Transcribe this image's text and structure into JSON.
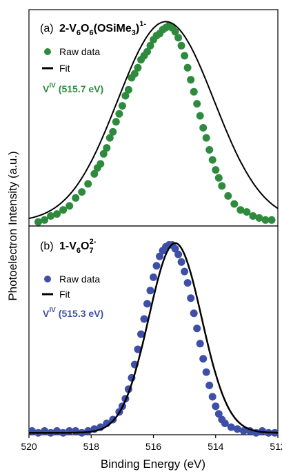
{
  "figure": {
    "ylabel": "Photoelectron Intensity (a.u.)",
    "xlabel": "Binding Energy (eV)"
  },
  "chart_data": [
    {
      "type": "scatter",
      "panel_tag": "(a)",
      "title_main": "2-V",
      "title_parts": [
        "6",
        "O",
        "6",
        "(OSiMe",
        "3",
        ")",
        "1-"
      ],
      "legend": {
        "points": "Raw data",
        "line": "Fit"
      },
      "annotation_prefix": "V",
      "annotation_sup": "IV",
      "annotation_value": "(515.7 eV)",
      "accent": "#2e8b3e",
      "xlim": [
        520,
        512
      ],
      "ylim": [
        0,
        1.08
      ],
      "fit": {
        "center": 515.6,
        "sigma": 1.55,
        "amplitude": 1.0,
        "baseline": 0.02
      },
      "series": [
        {
          "name": "Raw data",
          "x": [
            519.7,
            519.5,
            519.3,
            519.1,
            518.9,
            518.7,
            518.5,
            518.3,
            518.1,
            517.9,
            517.8,
            517.7,
            517.6,
            517.5,
            517.4,
            517.3,
            517.2,
            517.1,
            517.0,
            516.9,
            516.8,
            516.7,
            516.6,
            516.5,
            516.4,
            516.3,
            516.2,
            516.1,
            516.0,
            515.9,
            515.8,
            515.7,
            515.6,
            515.5,
            515.4,
            515.3,
            515.2,
            515.1,
            515.0,
            514.9,
            514.8,
            514.7,
            514.6,
            514.5,
            514.4,
            514.3,
            514.2,
            514.1,
            514.0,
            513.9,
            513.8,
            513.6,
            513.4,
            513.2,
            513.0,
            512.8,
            512.6,
            512.4,
            512.2
          ],
          "y": [
            0.02,
            0.03,
            0.05,
            0.06,
            0.08,
            0.1,
            0.14,
            0.17,
            0.21,
            0.26,
            0.29,
            0.31,
            0.36,
            0.39,
            0.44,
            0.47,
            0.52,
            0.56,
            0.6,
            0.65,
            0.68,
            0.74,
            0.76,
            0.79,
            0.83,
            0.85,
            0.87,
            0.9,
            0.93,
            0.95,
            0.96,
            0.98,
            0.99,
            1.0,
            0.99,
            0.97,
            0.94,
            0.9,
            0.85,
            0.79,
            0.73,
            0.67,
            0.61,
            0.55,
            0.49,
            0.44,
            0.38,
            0.33,
            0.28,
            0.24,
            0.2,
            0.15,
            0.11,
            0.08,
            0.07,
            0.05,
            0.04,
            0.03,
            0.03
          ]
        }
      ]
    },
    {
      "type": "scatter",
      "panel_tag": "(b)",
      "title_main": "1-V",
      "title_parts": [
        "6",
        "O",
        "7",
        "2-"
      ],
      "legend": {
        "points": "Raw data",
        "line": "Fit"
      },
      "annotation_prefix": "V",
      "annotation_sup": "IV",
      "annotation_value": "(515.3 eV)",
      "accent": "#3e4fa8",
      "xlim": [
        520,
        512
      ],
      "ylim": [
        0,
        1.1
      ],
      "fit": {
        "center": 515.3,
        "sigma": 0.85,
        "amplitude": 1.0,
        "baseline": 0.01
      },
      "series": [
        {
          "name": "Raw data",
          "x": [
            519.9,
            519.7,
            519.5,
            519.3,
            519.1,
            518.9,
            518.7,
            518.5,
            518.3,
            518.1,
            517.9,
            517.7,
            517.5,
            517.3,
            517.1,
            517.0,
            516.9,
            516.8,
            516.7,
            516.6,
            516.5,
            516.4,
            516.3,
            516.2,
            516.1,
            516.0,
            515.9,
            515.8,
            515.7,
            515.6,
            515.5,
            515.4,
            515.3,
            515.2,
            515.1,
            515.0,
            514.9,
            514.8,
            514.7,
            514.6,
            514.5,
            514.4,
            514.3,
            514.2,
            514.1,
            514.0,
            513.9,
            513.8,
            513.7,
            513.5,
            513.3,
            513.1,
            512.9,
            512.7,
            512.5,
            512.3,
            512.1
          ],
          "y": [
            0.02,
            0.01,
            0.02,
            0.01,
            0.02,
            0.01,
            0.02,
            0.02,
            0.01,
            0.02,
            0.03,
            0.04,
            0.06,
            0.08,
            0.12,
            0.15,
            0.19,
            0.24,
            0.3,
            0.37,
            0.45,
            0.53,
            0.61,
            0.69,
            0.76,
            0.83,
            0.89,
            0.94,
            0.97,
            0.99,
            1.0,
            1.0,
            0.98,
            0.95,
            0.91,
            0.86,
            0.8,
            0.72,
            0.64,
            0.56,
            0.48,
            0.4,
            0.33,
            0.26,
            0.2,
            0.15,
            0.11,
            0.08,
            0.06,
            0.04,
            0.03,
            0.02,
            0.02,
            0.01,
            0.02,
            0.01,
            0.01
          ]
        }
      ]
    }
  ],
  "x_ticks": [
    "520",
    "518",
    "516",
    "514",
    "512"
  ]
}
